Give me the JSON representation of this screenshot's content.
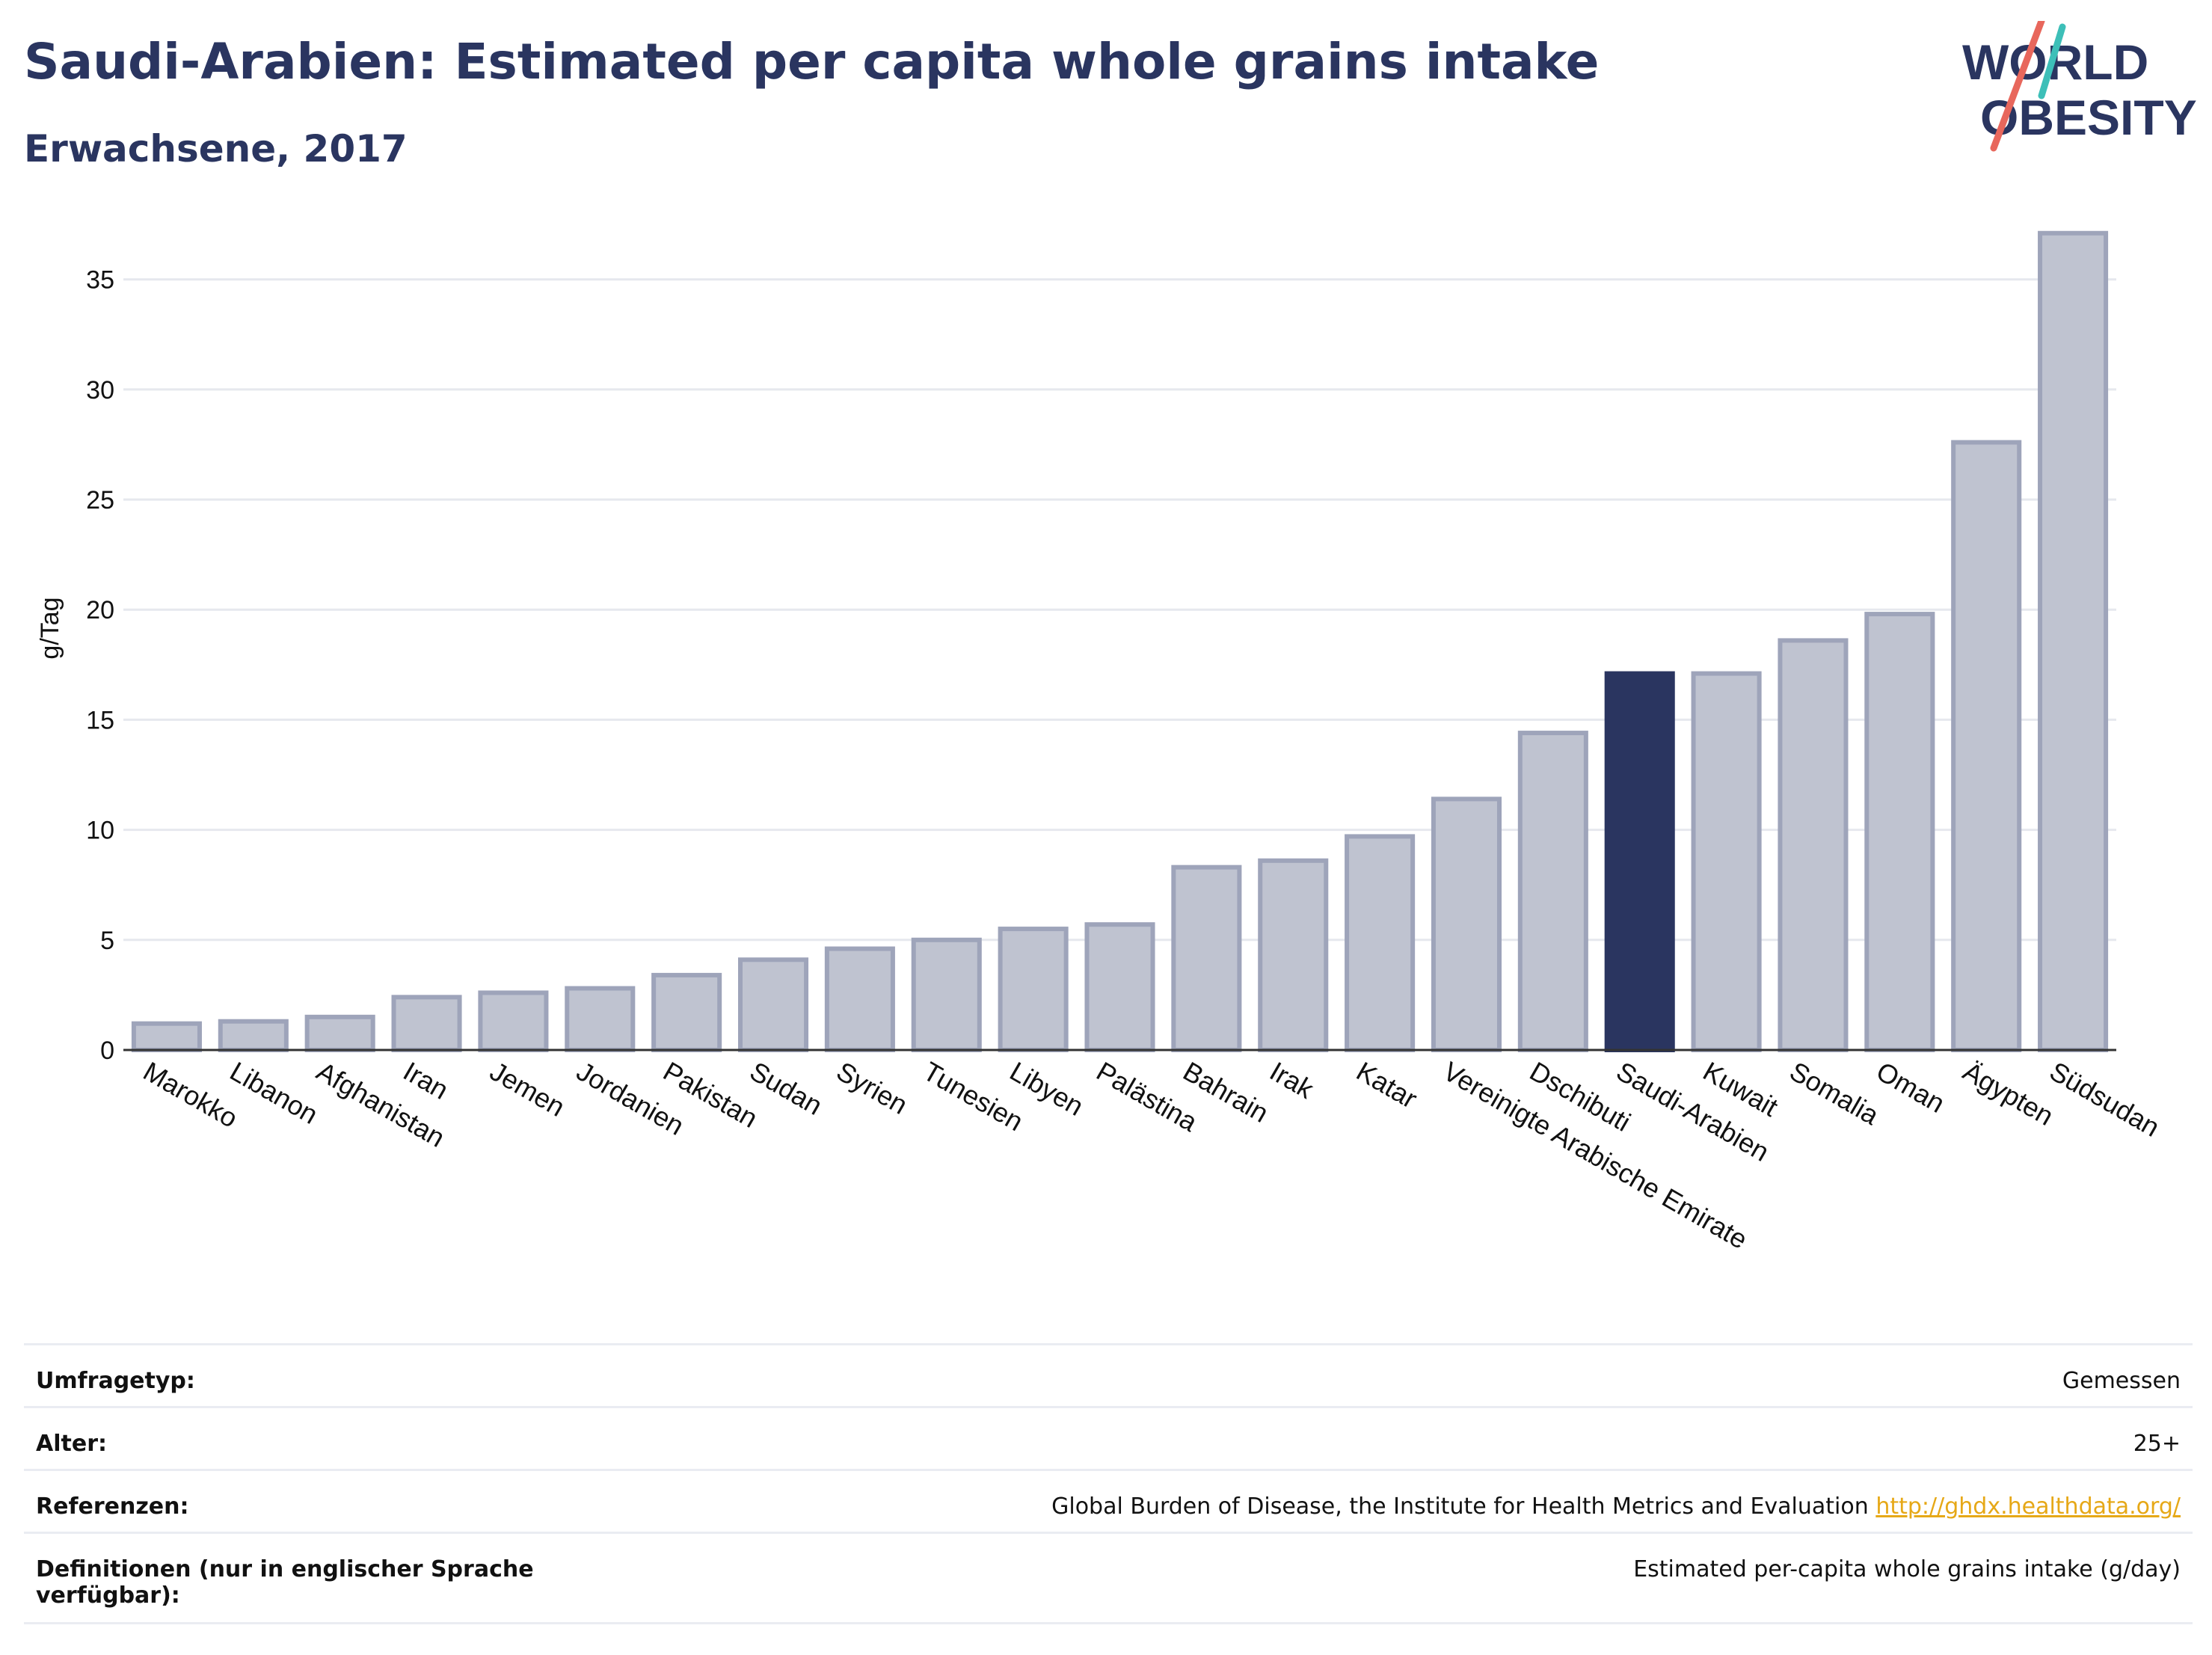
{
  "header": {
    "title": "Saudi-Arabien: Estimated per capita whole grains intake",
    "subtitle": "Erwachsene, 2017"
  },
  "logo": {
    "line1": "WORLD",
    "line2": "OBESITY",
    "accent_teal": "#3dbfb8",
    "accent_red": "#e8675c",
    "text_color": "#2a3560"
  },
  "chart_data": {
    "type": "bar",
    "ylabel": "g/Tag",
    "ylim": [
      0,
      37.5
    ],
    "yticks": [
      0,
      5,
      10,
      15,
      20,
      25,
      30,
      35
    ],
    "grid": true,
    "highlight": "Saudi-Arabien",
    "colors": {
      "bar": "#bfc3d0",
      "bar_edge": "#9ea4ba",
      "highlight": "#2a3560"
    },
    "categories": [
      "Marokko",
      "Libanon",
      "Afghanistan",
      "Iran",
      "Jemen",
      "Jordanien",
      "Pakistan",
      "Sudan",
      "Syrien",
      "Tunesien",
      "Libyen",
      "Palästina",
      "Bahrain",
      "Irak",
      "Katar",
      "Vereinigte Arabische Emirate",
      "Dschibuti",
      "Saudi-Arabien",
      "Kuwait",
      "Somalia",
      "Oman",
      "Ägypten",
      "Südsudan"
    ],
    "values": [
      1.2,
      1.3,
      1.5,
      2.4,
      2.6,
      2.8,
      3.4,
      4.1,
      4.6,
      5.0,
      5.5,
      5.7,
      8.3,
      8.6,
      9.7,
      11.4,
      14.4,
      17.1,
      17.1,
      18.6,
      19.8,
      27.6,
      37.1
    ]
  },
  "footer": {
    "rows": [
      {
        "label": "Umfragetyp:",
        "value": "Gemessen"
      },
      {
        "label": "Alter:",
        "value": "25+"
      },
      {
        "label": "Referenzen:",
        "value": "Global Burden of Disease, the Institute for Health Metrics and Evaluation",
        "link": "http://ghdx.healthdata.org/"
      },
      {
        "label": "Definitionen (nur in englischer Sprache verfügbar):",
        "value": "Estimated per-capita whole grains intake (g/day)"
      }
    ]
  }
}
